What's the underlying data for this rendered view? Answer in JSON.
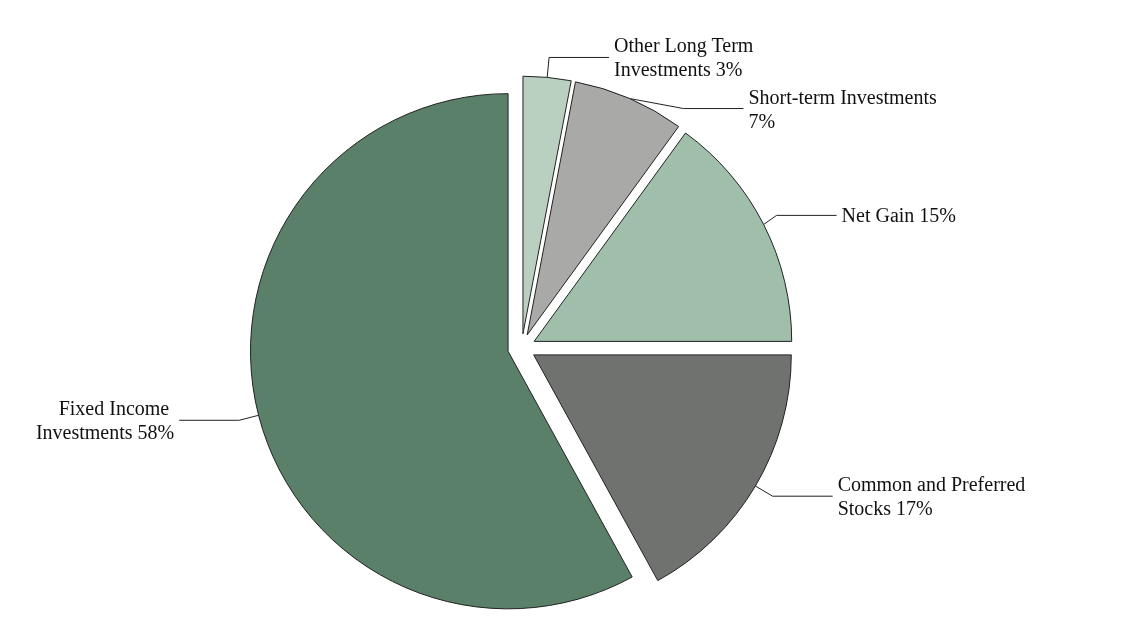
{
  "chart_data": {
    "type": "pie",
    "categories": [
      "Other Long Term Investments",
      "Short-term Investments",
      "Net Gain",
      "Common and Preferred Stocks",
      "Fixed Income Investments"
    ],
    "values": [
      3,
      7,
      15,
      17,
      58
    ],
    "value_labels": [
      "3%",
      "7%",
      "15%",
      "17%",
      "58%"
    ],
    "colors": [
      "#b9cfbf",
      "#a9aaa8",
      "#a0bfab",
      "#707270",
      "#5b8069"
    ]
  }
}
